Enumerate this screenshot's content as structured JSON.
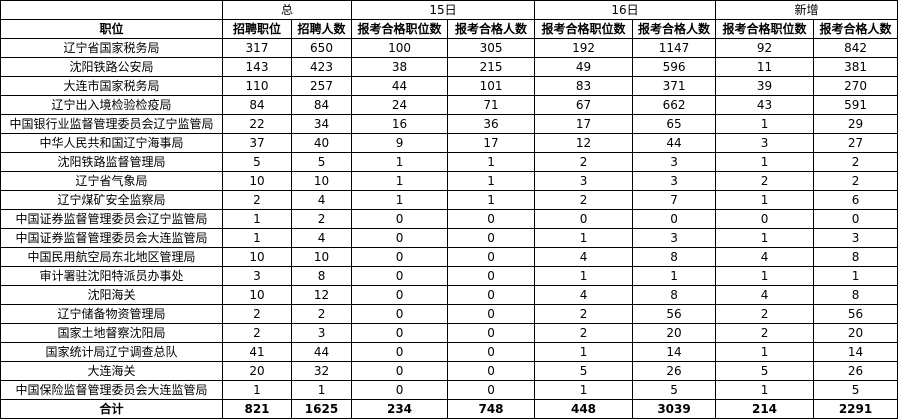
{
  "table": {
    "group_headers": [
      "总",
      "15日",
      "16日",
      "新增"
    ],
    "column_headers": [
      "职位",
      "招聘职位",
      "招聘人数",
      "报考合格职位数",
      "报考合格人数",
      "报考合格职位数",
      "报考合格人数",
      "报考合格职位数",
      "报考合格人数"
    ],
    "rows": [
      [
        "辽宁省国家税务局",
        "317",
        "650",
        "100",
        "305",
        "192",
        "1147",
        "92",
        "842"
      ],
      [
        "沈阳铁路公安局",
        "143",
        "423",
        "38",
        "215",
        "49",
        "596",
        "11",
        "381"
      ],
      [
        "大连市国家税务局",
        "110",
        "257",
        "44",
        "101",
        "83",
        "371",
        "39",
        "270"
      ],
      [
        "辽宁出入境检验检疫局",
        "84",
        "84",
        "24",
        "71",
        "67",
        "662",
        "43",
        "591"
      ],
      [
        "中国银行业监督管理委员会辽宁监管局",
        "22",
        "34",
        "16",
        "36",
        "17",
        "65",
        "1",
        "29"
      ],
      [
        "中华人民共和国辽宁海事局",
        "37",
        "40",
        "9",
        "17",
        "12",
        "44",
        "3",
        "27"
      ],
      [
        "沈阳铁路监督管理局",
        "5",
        "5",
        "1",
        "1",
        "2",
        "3",
        "1",
        "2"
      ],
      [
        "辽宁省气象局",
        "10",
        "10",
        "1",
        "1",
        "3",
        "3",
        "2",
        "2"
      ],
      [
        "辽宁煤矿安全监察局",
        "2",
        "4",
        "1",
        "1",
        "2",
        "7",
        "1",
        "6"
      ],
      [
        "中国证券监督管理委员会辽宁监管局",
        "1",
        "2",
        "0",
        "0",
        "0",
        "0",
        "0",
        "0"
      ],
      [
        "中国证券监督管理委员会大连监管局",
        "1",
        "4",
        "0",
        "0",
        "1",
        "3",
        "1",
        "3"
      ],
      [
        "中国民用航空局东北地区管理局",
        "10",
        "10",
        "0",
        "0",
        "4",
        "8",
        "4",
        "8"
      ],
      [
        "审计署驻沈阳特派员办事处",
        "3",
        "8",
        "0",
        "0",
        "1",
        "1",
        "1",
        "1"
      ],
      [
        "沈阳海关",
        "10",
        "12",
        "0",
        "0",
        "4",
        "8",
        "4",
        "8"
      ],
      [
        "辽宁储备物资管理局",
        "2",
        "2",
        "0",
        "0",
        "2",
        "56",
        "2",
        "56"
      ],
      [
        "国家土地督察沈阳局",
        "2",
        "3",
        "0",
        "0",
        "2",
        "20",
        "2",
        "20"
      ],
      [
        "国家统计局辽宁调查总队",
        "41",
        "44",
        "0",
        "0",
        "1",
        "14",
        "1",
        "14"
      ],
      [
        "大连海关",
        "20",
        "32",
        "0",
        "0",
        "5",
        "26",
        "5",
        "26"
      ],
      [
        "中国保险监督管理委员会大连监管局",
        "1",
        "1",
        "0",
        "0",
        "1",
        "5",
        "1",
        "5"
      ]
    ],
    "total": [
      "合计",
      "821",
      "1625",
      "234",
      "748",
      "448",
      "3039",
      "214",
      "2291"
    ]
  }
}
